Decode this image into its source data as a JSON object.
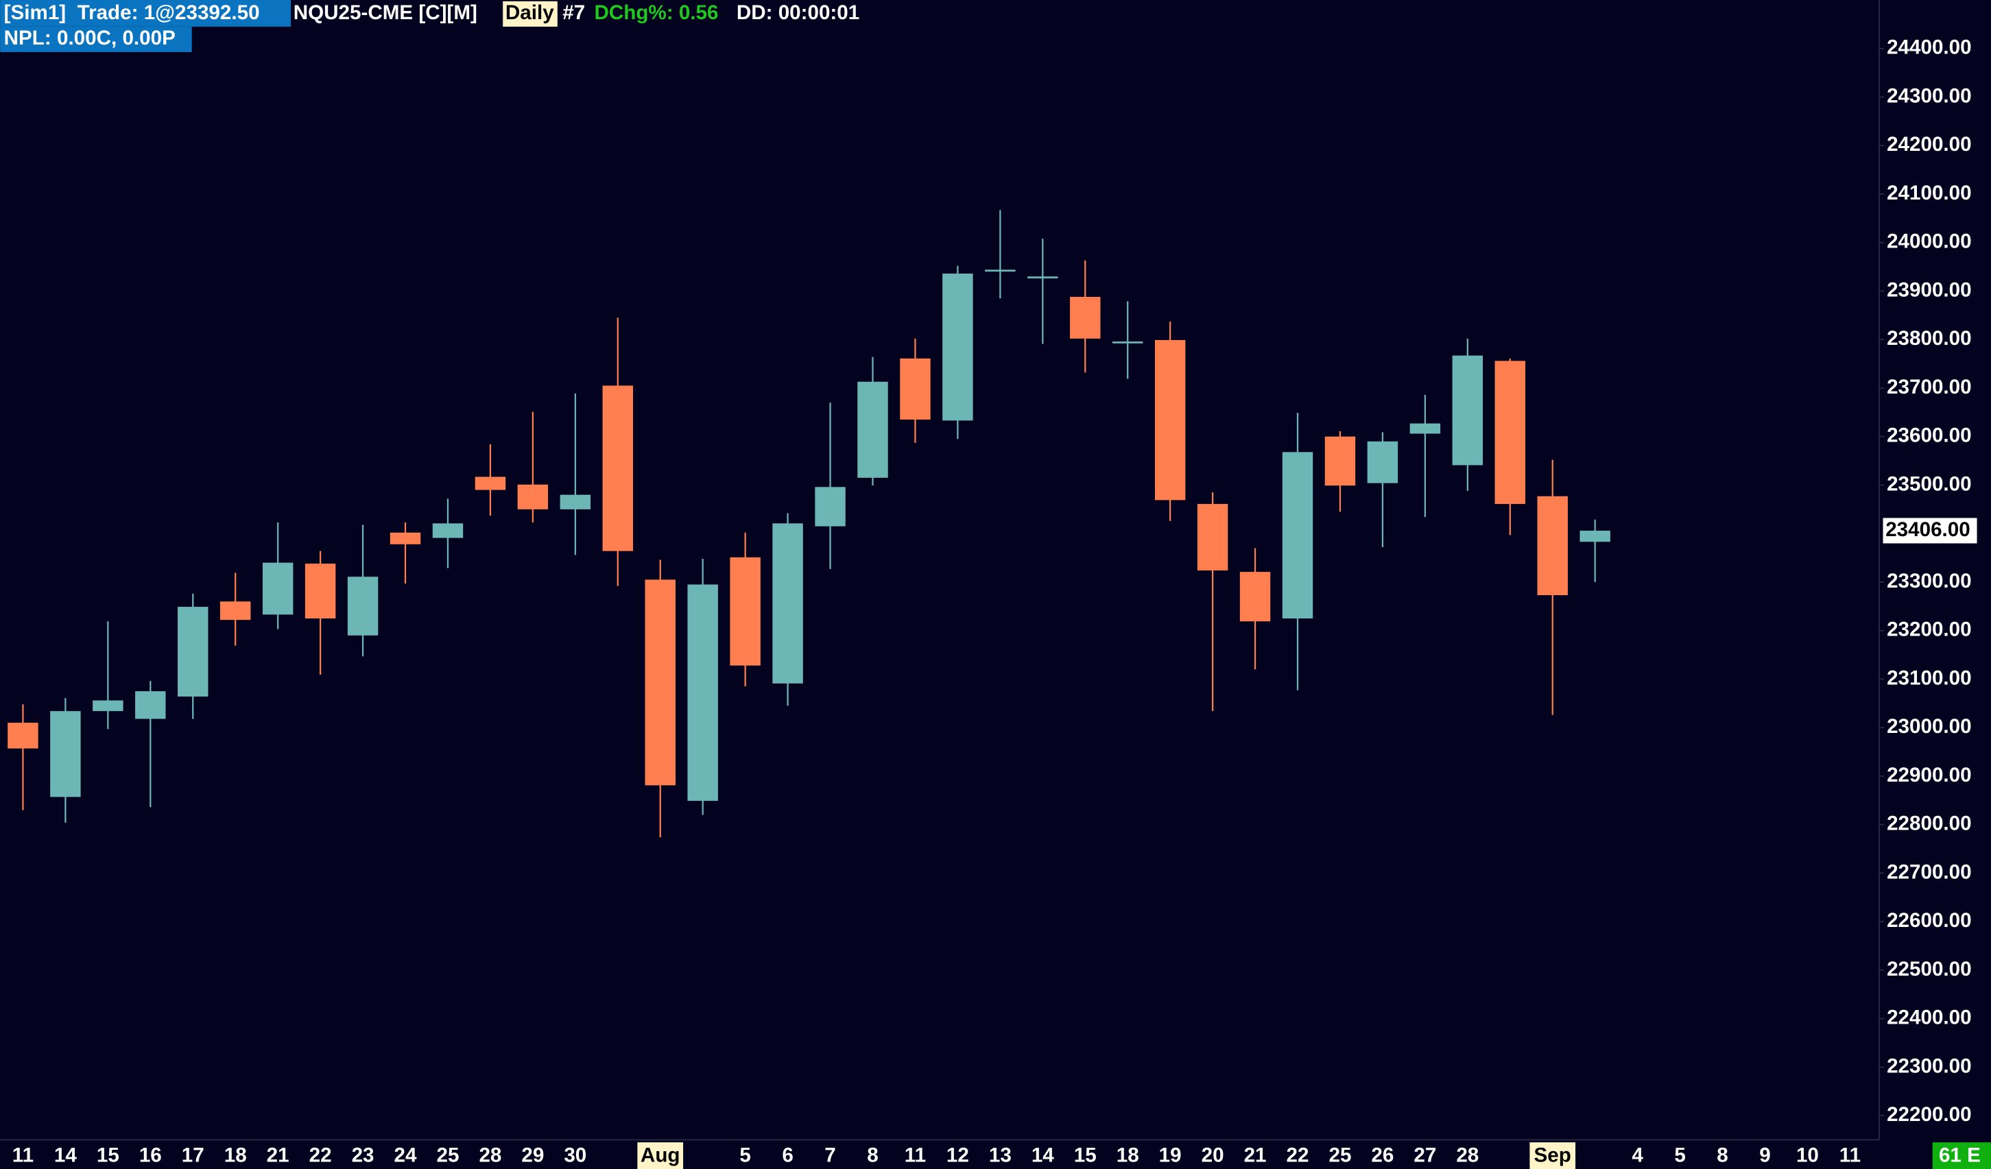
{
  "chart_data": {
    "type": "candlestick",
    "account": "[Sim1]  Trade: 1@23392.50",
    "symbol": "NQU25-CME [C][M]",
    "period": "Daily",
    "chart_number": "#7",
    "daily_change": "DChg%: 0.56",
    "duration": "DD: 00:00:01",
    "pnl": "NPL: 0.00C, 0.00P",
    "status": "61 E",
    "categories": [
      "11",
      "14",
      "15",
      "16",
      "17",
      "18",
      "21",
      "22",
      "23",
      "24",
      "25",
      "28",
      "29",
      "30",
      null,
      "Aug",
      null,
      "5",
      "6",
      "7",
      "8",
      "11",
      "12",
      "13",
      "14",
      "15",
      "18",
      "19",
      "20",
      "21",
      "22",
      "25",
      "26",
      "27",
      "28",
      null,
      "Sep",
      null,
      "4",
      "5",
      "8",
      "9",
      "10",
      "11"
    ],
    "open": [
      23010,
      22857,
      23034,
      23018,
      23064,
      23260,
      23233,
      23338,
      23190,
      23402,
      23391,
      23517,
      23501,
      23450,
      23705,
      23305,
      22849,
      23351,
      23091,
      23415,
      23515,
      23761,
      23633,
      23944,
      23930,
      23888,
      23796,
      23799,
      23461,
      23321,
      23225,
      23600,
      23504,
      23606,
      23541,
      23756,
      23477,
      23383,
      null,
      null,
      null,
      null,
      null,
      null
    ],
    "high": [
      23048,
      23061,
      23219,
      23096,
      23276,
      23319,
      23423,
      23364,
      23418,
      23423,
      23472,
      23584,
      23651,
      23689,
      23845,
      23346,
      23348,
      23402,
      23442,
      23670,
      23764,
      23802,
      23952,
      24067,
      24008,
      23963,
      23879,
      23837,
      23485,
      23370,
      23649,
      23611,
      23609,
      23686,
      23802,
      23761,
      23552,
      23429,
      null,
      null,
      null,
      null,
      null,
      null
    ],
    "low": [
      22830,
      22804,
      22997,
      22836,
      23018,
      23169,
      23203,
      23109,
      23147,
      23297,
      23329,
      23437,
      23423,
      23356,
      23292,
      22774,
      22820,
      23085,
      23045,
      23327,
      23499,
      23587,
      23595,
      23885,
      23791,
      23732,
      23719,
      23426,
      23034,
      23120,
      23077,
      23445,
      23372,
      23434,
      23488,
      23397,
      23026,
      23300,
      null,
      null,
      null,
      null,
      null,
      null
    ],
    "close": [
      22957,
      23034,
      23056,
      23075,
      23249,
      23222,
      23340,
      23225,
      23311,
      23378,
      23421,
      23490,
      23450,
      23480,
      23364,
      22881,
      23295,
      23128,
      23421,
      23496,
      23713,
      23635,
      23936,
      23944,
      23930,
      23802,
      23796,
      23469,
      23324,
      23219,
      23568,
      23499,
      23590,
      23627,
      23767,
      23461,
      23273,
      23406,
      null,
      null,
      null,
      null,
      null,
      null
    ],
    "up_color": "#6db6b6",
    "down_color": "#ff7f50",
    "ylim": [
      22090,
      24500
    ],
    "yticks": [
      {
        "value": 24400,
        "label": "24400.00"
      },
      {
        "value": 24300,
        "label": "24300.00"
      },
      {
        "value": 24200,
        "label": "24200.00"
      },
      {
        "value": 24100,
        "label": "24100.00"
      },
      {
        "value": 24000,
        "label": "24000.00"
      },
      {
        "value": 23900,
        "label": "23900.00"
      },
      {
        "value": 23800,
        "label": "23800.00"
      },
      {
        "value": 23700,
        "label": "23700.00"
      },
      {
        "value": 23600,
        "label": "23600.00"
      },
      {
        "value": 23500,
        "label": "23500.00"
      },
      {
        "value": 23300,
        "label": "23300.00"
      },
      {
        "value": 23200,
        "label": "23200.00"
      },
      {
        "value": 23100,
        "label": "23100.00"
      },
      {
        "value": 23000,
        "label": "23000.00"
      },
      {
        "value": 22900,
        "label": "22900.00"
      },
      {
        "value": 22800,
        "label": "22800.00"
      },
      {
        "value": 22700,
        "label": "22700.00"
      },
      {
        "value": 22600,
        "label": "22600.00"
      },
      {
        "value": 22500,
        "label": "22500.00"
      },
      {
        "value": 22400,
        "label": "22400.00"
      },
      {
        "value": 22300,
        "label": "22300.00"
      },
      {
        "value": 22200,
        "label": "22200.00"
      }
    ],
    "current_price": {
      "value": 23406,
      "label": "23406.00"
    }
  }
}
